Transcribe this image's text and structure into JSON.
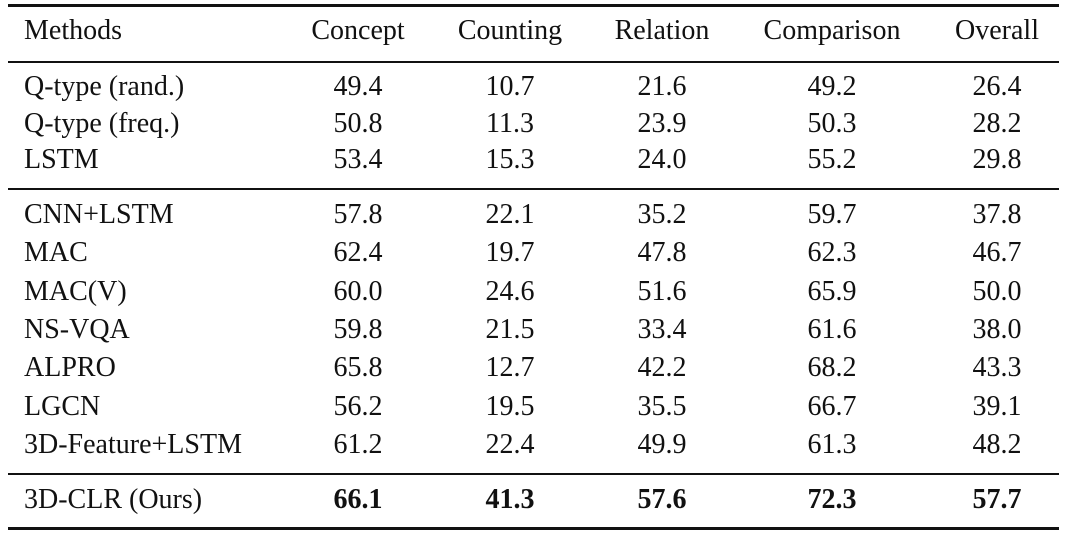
{
  "table": {
    "header": [
      "Methods",
      "Concept",
      "Counting",
      "Relation",
      "Comparison",
      "Overall"
    ],
    "groups": [
      [
        [
          "Q-type (rand.)",
          "49.4",
          "10.7",
          "21.6",
          "49.2",
          "26.4"
        ],
        [
          "Q-type (freq.)",
          "50.8",
          "11.3",
          "23.9",
          "50.3",
          "28.2"
        ],
        [
          "LSTM",
          "53.4",
          "15.3",
          "24.0",
          "55.2",
          "29.8"
        ]
      ],
      [
        [
          "CNN+LSTM",
          "57.8",
          "22.1",
          "35.2",
          "59.7",
          "37.8"
        ],
        [
          "MAC",
          "62.4",
          "19.7",
          "47.8",
          "62.3",
          "46.7"
        ],
        [
          "MAC(V)",
          "60.0",
          "24.6",
          "51.6",
          "65.9",
          "50.0"
        ],
        [
          "NS-VQA",
          "59.8",
          "21.5",
          "33.4",
          "61.6",
          "38.0"
        ],
        [
          "ALPRO",
          "65.8",
          "12.7",
          "42.2",
          "68.2",
          "43.3"
        ],
        [
          "LGCN",
          "56.2",
          "19.5",
          "35.5",
          "66.7",
          "39.1"
        ],
        [
          "3D-Feature+LSTM",
          "61.2",
          "22.4",
          "49.9",
          "61.3",
          "48.2"
        ]
      ],
      [
        [
          "3D-CLR (Ours)",
          "66.1",
          "41.3",
          "57.6",
          "72.3",
          "57.7"
        ]
      ]
    ]
  }
}
